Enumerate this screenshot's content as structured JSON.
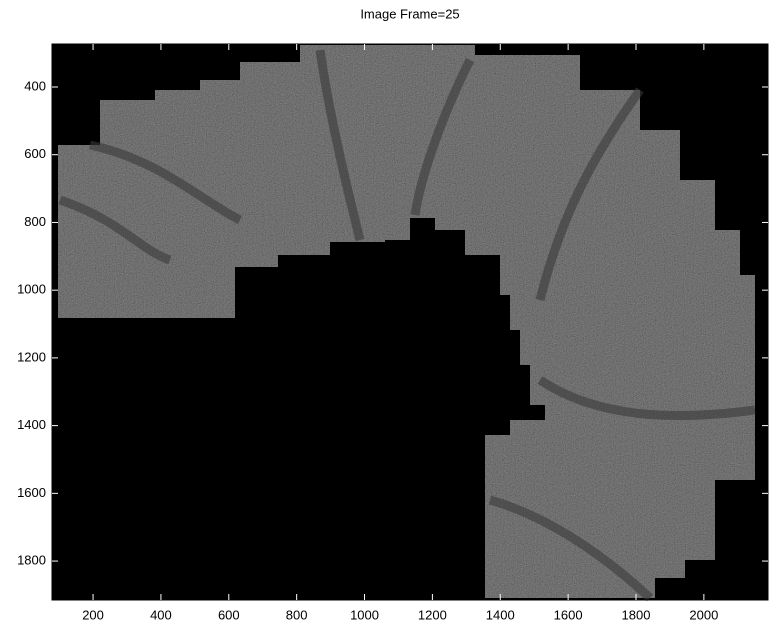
{
  "chart_data": {
    "type": "image",
    "title": "Image Frame=25",
    "xlim": [
      79,
      2189
    ],
    "xticks": [
      200,
      400,
      600,
      800,
      1000,
      1200,
      1400,
      1600,
      1800,
      2000
    ],
    "ylim": [
      1915,
      273
    ],
    "yticks": [
      400,
      600,
      800,
      1000,
      1200,
      1400,
      1600,
      1800
    ],
    "y_reversed": true,
    "colormap": "gray"
  }
}
